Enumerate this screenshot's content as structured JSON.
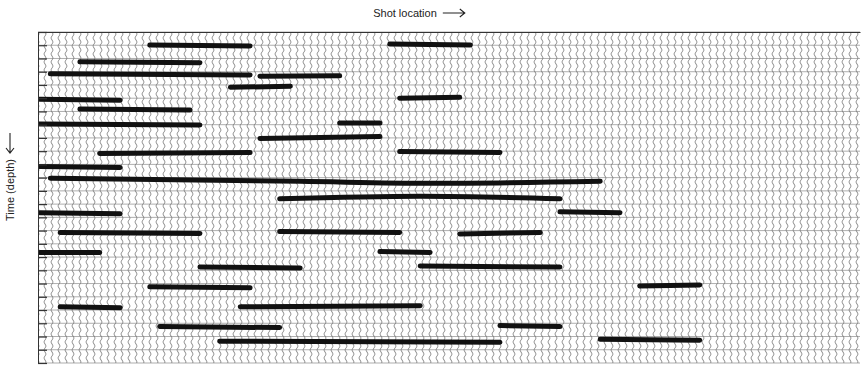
{
  "chart_data": {
    "type": "seismic",
    "x_label": "Shot location",
    "y_label": "Time (depth)",
    "xlim": [
      0,
      100
    ],
    "ylim": [
      0,
      100
    ],
    "xticks": [],
    "yticks": [
      0,
      4,
      8,
      12,
      16,
      20,
      24,
      28,
      32,
      36,
      40,
      44,
      48,
      52,
      56,
      60,
      64,
      68,
      72,
      76,
      80,
      84,
      88,
      92,
      96,
      100
    ],
    "tick_labels": false,
    "grid": true,
    "horizons": [
      {
        "x": [
          13.6,
          25.8
        ],
        "y": [
          3.9,
          4.2
        ]
      },
      {
        "x": [
          42.8,
          52.6
        ],
        "y": [
          3.6,
          3.9
        ]
      },
      {
        "x": [
          5.1,
          19.7
        ],
        "y": [
          9,
          9.3
        ]
      },
      {
        "x": [
          1.5,
          25.8
        ],
        "y": [
          12.6,
          13
        ]
      },
      {
        "x": [
          27,
          36.7
        ],
        "y": [
          13.4,
          13.2
        ]
      },
      {
        "x": [
          23.4,
          30.7
        ],
        "y": [
          16.7,
          16.4
        ]
      },
      {
        "x": [
          0.2,
          10
        ],
        "y": [
          20.3,
          20.6
        ]
      },
      {
        "x": [
          44,
          51.3
        ],
        "y": [
          20,
          19.7
        ]
      },
      {
        "x": [
          5.1,
          18.5
        ],
        "y": [
          23.3,
          23.6
        ]
      },
      {
        "x": [
          0.2,
          19.7
        ],
        "y": [
          27.8,
          28.1
        ]
      },
      {
        "x": [
          36.7,
          41.6
        ],
        "y": [
          27.5,
          27.5
        ]
      },
      {
        "x": [
          27,
          41.6
        ],
        "y": [
          32.2,
          31.6
        ]
      },
      {
        "x": [
          7.5,
          25.8
        ],
        "y": [
          36.7,
          36.4
        ]
      },
      {
        "x": [
          44,
          56.2
        ],
        "y": [
          36.1,
          36.4
        ]
      },
      {
        "x": [
          0.2,
          10
        ],
        "y": [
          40.6,
          40.9
        ]
      },
      {
        "x": [
          1.5,
          31.9,
          47.7,
          68.4
        ],
        "y": [
          44.2,
          45.1,
          45.7,
          45.1
        ]
      },
      {
        "x": [
          29.4,
          46.5,
          63.5
        ],
        "y": [
          50.4,
          49.6,
          50.4
        ]
      },
      {
        "x": [
          0.2,
          10
        ],
        "y": [
          54.6,
          54.9
        ]
      },
      {
        "x": [
          63.5,
          70.8
        ],
        "y": [
          54.3,
          54.6
        ]
      },
      {
        "x": [
          2.7,
          19.7
        ],
        "y": [
          60.6,
          60.9
        ]
      },
      {
        "x": [
          29.4,
          44
        ],
        "y": [
          60.3,
          60.6
        ]
      },
      {
        "x": [
          51.3,
          61.1
        ],
        "y": [
          61,
          60.6
        ]
      },
      {
        "x": [
          0.2,
          7.5
        ],
        "y": [
          66.6,
          66.6
        ]
      },
      {
        "x": [
          41.6,
          47.7
        ],
        "y": [
          66.3,
          66.6
        ]
      },
      {
        "x": [
          19.7,
          31.9
        ],
        "y": [
          71,
          71.3
        ]
      },
      {
        "x": [
          46.5,
          63.5
        ],
        "y": [
          70.7,
          71
        ]
      },
      {
        "x": [
          13.6,
          25.8
        ],
        "y": [
          77,
          77.3
        ]
      },
      {
        "x": [
          73.2,
          80.5
        ],
        "y": [
          76.7,
          76.4
        ]
      },
      {
        "x": [
          2.7,
          10
        ],
        "y": [
          83,
          83.3
        ]
      },
      {
        "x": [
          24.6,
          46.5
        ],
        "y": [
          83,
          82.7
        ]
      },
      {
        "x": [
          14.8,
          29.4
        ],
        "y": [
          89,
          89.3
        ]
      },
      {
        "x": [
          56.2,
          63.5
        ],
        "y": [
          88.7,
          89
        ]
      },
      {
        "x": [
          22.1,
          56.2
        ],
        "y": [
          93.4,
          93.7
        ]
      },
      {
        "x": [
          68.4,
          80.5
        ],
        "y": [
          92.8,
          93.1
        ]
      }
    ]
  }
}
